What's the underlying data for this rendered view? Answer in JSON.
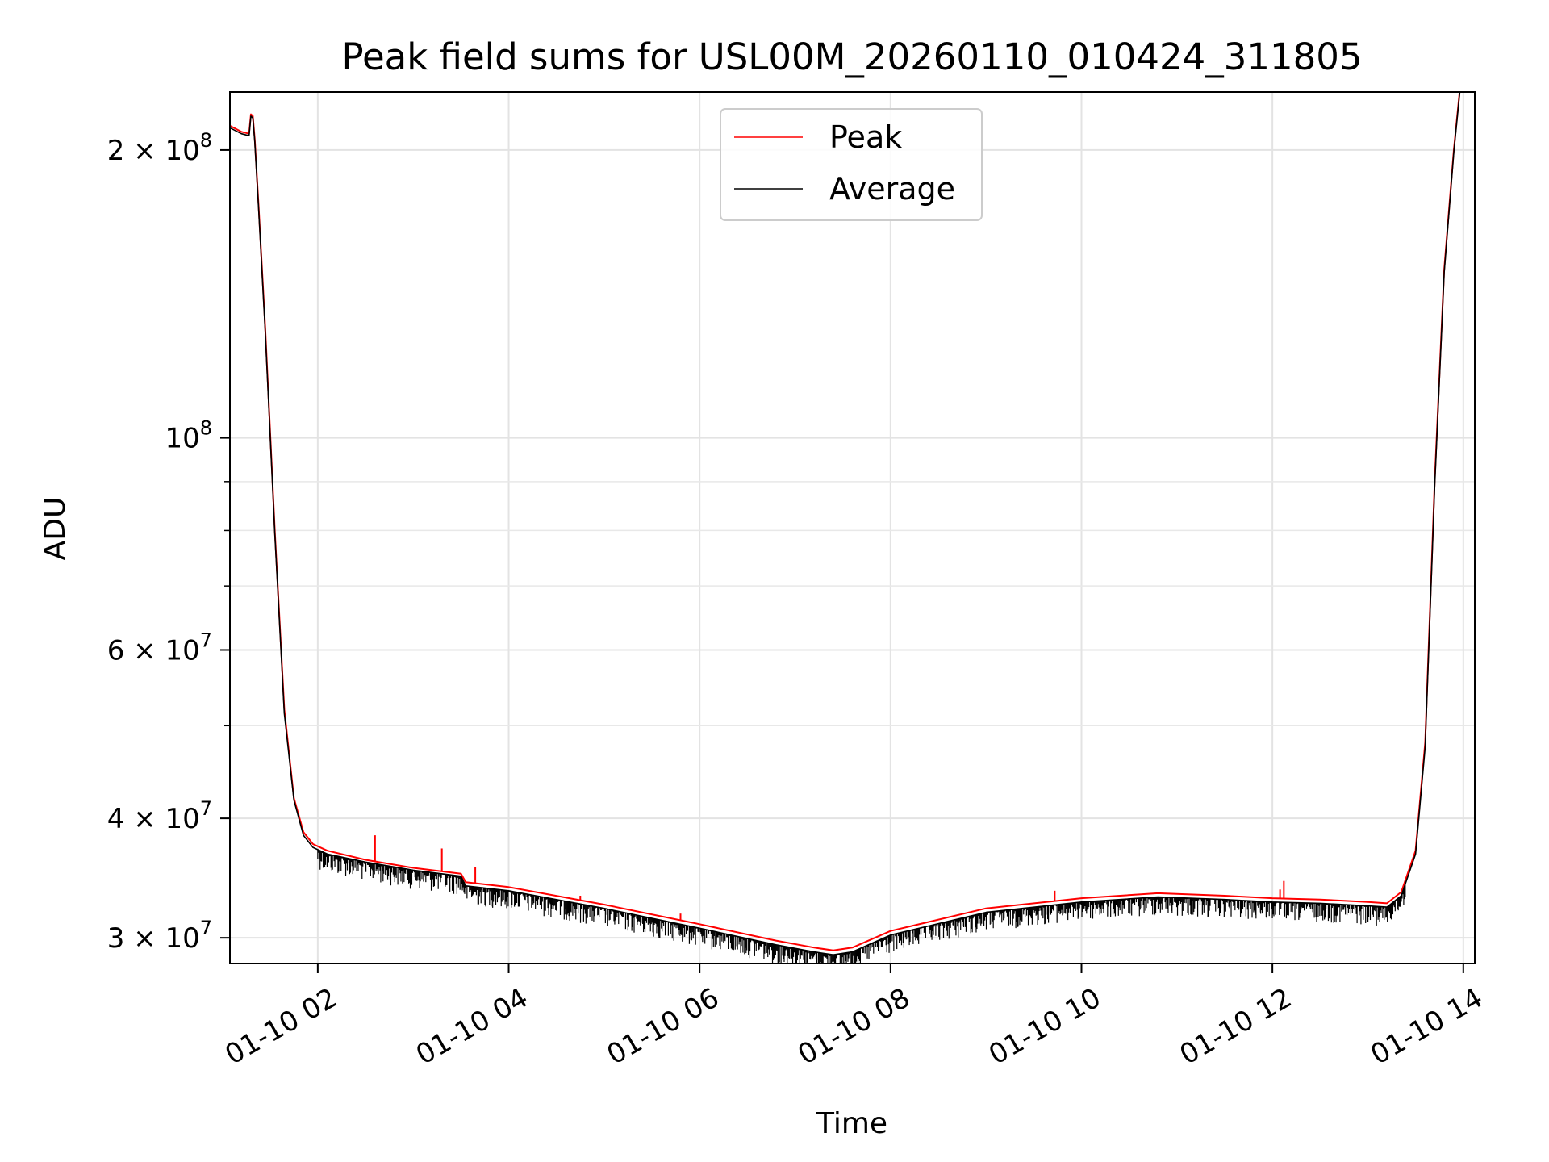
{
  "chart_data": {
    "type": "line",
    "title": "Peak field sums for USL00M_20260110_010424_311805",
    "xlabel": "Time",
    "ylabel": "ADU",
    "yscale": "log",
    "xlim": [
      1.08,
      14.12
    ],
    "ylim": [
      28200000,
      230000000
    ],
    "grid": true,
    "legend_position": "upper center",
    "x_ticks": [
      {
        "value": 2,
        "label": "01-10 02"
      },
      {
        "value": 4,
        "label": "01-10 04"
      },
      {
        "value": 6,
        "label": "01-10 06"
      },
      {
        "value": 8,
        "label": "01-10 08"
      },
      {
        "value": 10,
        "label": "01-10 10"
      },
      {
        "value": 12,
        "label": "01-10 12"
      },
      {
        "value": 14,
        "label": "01-10 14"
      }
    ],
    "y_ticks": [
      {
        "value": 30000000,
        "base": "3 × 10",
        "exp": "7"
      },
      {
        "value": 40000000,
        "base": "4 × 10",
        "exp": "7"
      },
      {
        "value": 60000000,
        "base": "6 × 10",
        "exp": "7"
      },
      {
        "value": 100000000,
        "base": "10",
        "exp": "8"
      },
      {
        "value": 200000000,
        "base": "2 × 10",
        "exp": "8"
      }
    ],
    "y_minor_ticks": [
      50000000,
      70000000,
      80000000,
      90000000
    ],
    "series": [
      {
        "name": "Peak",
        "color": "#ff0000",
        "x": [
          1.08,
          1.2,
          1.28,
          1.3,
          1.32,
          1.34,
          1.38,
          1.45,
          1.55,
          1.65,
          1.75,
          1.85,
          1.95,
          2.1,
          2.5,
          3.0,
          3.5,
          3.55,
          4.0,
          5.0,
          6.0,
          6.8,
          7.2,
          7.4,
          7.6,
          8.0,
          9.0,
          10.0,
          10.8,
          11.5,
          12.0,
          12.5,
          13.0,
          13.2,
          13.35,
          13.5,
          13.6,
          13.7,
          13.8,
          13.9,
          13.97
        ],
        "values": [
          212000000,
          209000000,
          208000000,
          218000000,
          217000000,
          205000000,
          175000000,
          130000000,
          80000000,
          52000000,
          42000000,
          38700000,
          37600000,
          37000000,
          36200000,
          35500000,
          35000000,
          34300000,
          33900000,
          32500000,
          31000000,
          29800000,
          29300000,
          29100000,
          29300000,
          30500000,
          32200000,
          33000000,
          33400000,
          33200000,
          33000000,
          32900000,
          32700000,
          32600000,
          33500000,
          37000000,
          48000000,
          90000000,
          150000000,
          200000000,
          235000000
        ],
        "spikes": [
          {
            "x": 2.6,
            "value": 38400000
          },
          {
            "x": 3.3,
            "value": 37200000
          },
          {
            "x": 3.65,
            "value": 35600000
          },
          {
            "x": 4.75,
            "value": 33200000
          },
          {
            "x": 5.8,
            "value": 31800000
          },
          {
            "x": 9.72,
            "value": 33600000
          },
          {
            "x": 12.12,
            "value": 34400000
          },
          {
            "x": 12.08,
            "value": 33700000
          }
        ]
      },
      {
        "name": "Average",
        "color": "#000000",
        "x": [
          1.08,
          1.2,
          1.28,
          1.3,
          1.32,
          1.34,
          1.38,
          1.45,
          1.55,
          1.65,
          1.75,
          1.85,
          1.95,
          2.1,
          2.5,
          3.0,
          3.5,
          3.55,
          4.0,
          5.0,
          6.0,
          6.8,
          7.2,
          7.4,
          7.6,
          8.0,
          9.0,
          10.0,
          10.8,
          11.5,
          12.0,
          12.5,
          13.0,
          13.2,
          13.35,
          13.5,
          13.6,
          13.7,
          13.8,
          13.9,
          13.97
        ],
        "values": [
          211000000,
          208000000,
          207000000,
          217000000,
          216000000,
          204000000,
          174000000,
          129000000,
          79500000,
          51500000,
          41800000,
          38400000,
          37300000,
          36700000,
          36000000,
          35300000,
          34800000,
          34000000,
          33600000,
          32200000,
          30700000,
          29500000,
          29000000,
          28800000,
          29000000,
          30200000,
          31900000,
          32700000,
          33100000,
          32900000,
          32700000,
          32600000,
          32400000,
          32300000,
          33200000,
          36700000,
          47500000,
          89000000,
          149000000,
          199000000,
          234000000
        ],
        "noise_range": {
          "x_start": 2.0,
          "x_end": 13.4,
          "max_drop_fraction": 0.045
        }
      }
    ]
  }
}
